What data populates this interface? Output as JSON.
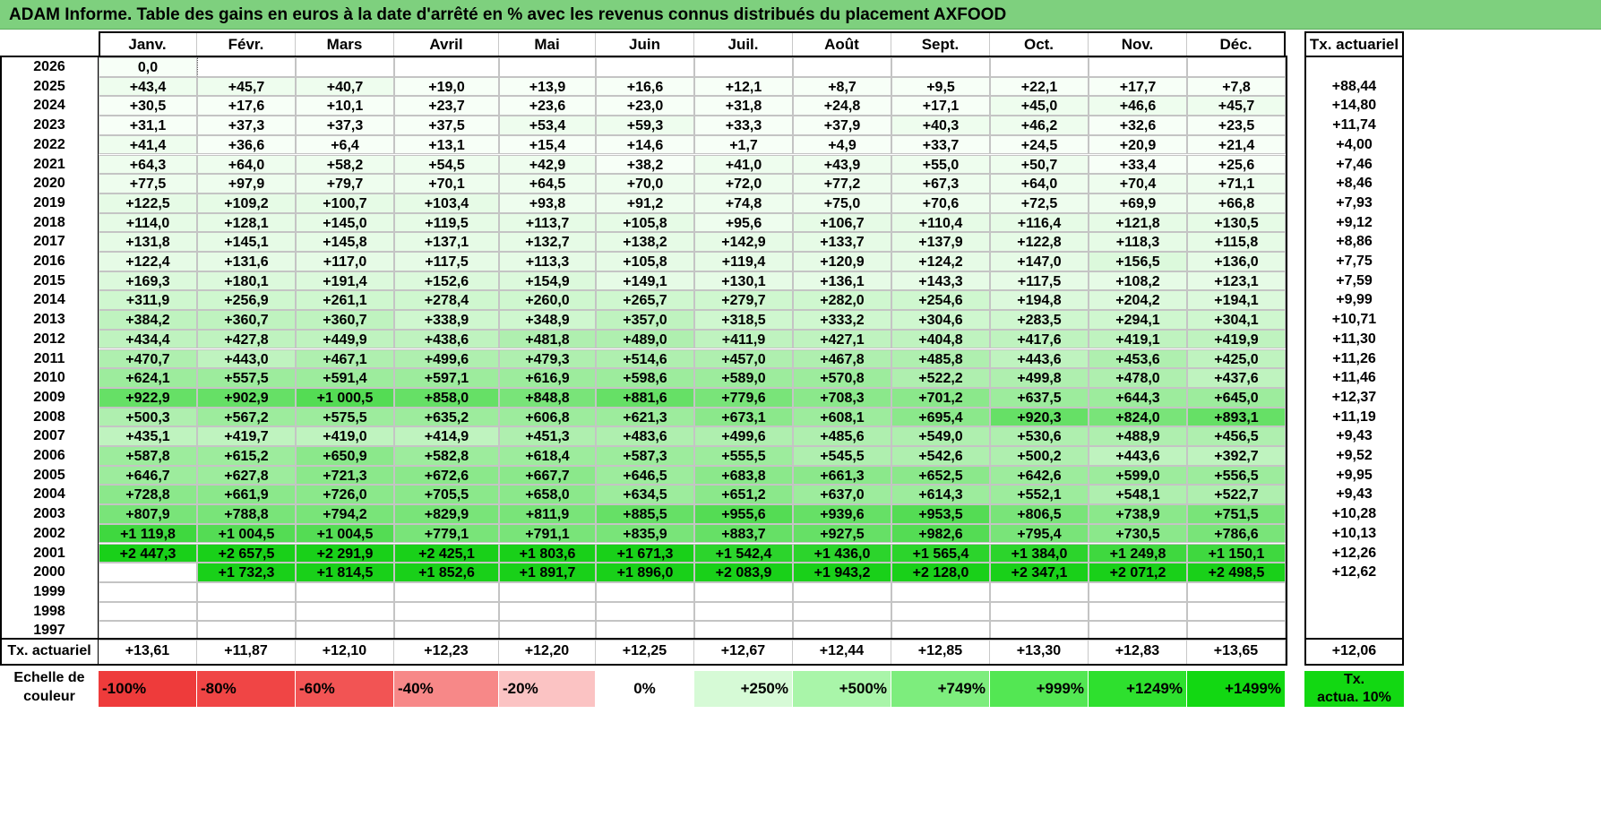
{
  "title": "ADAM Informe. Table des gains en euros à la date d'arrêté en % avec les revenus connus distribués du placement AXFOOD",
  "months": [
    "Janv.",
    "Févr.",
    "Mars",
    "Avril",
    "Mai",
    "Juin",
    "Juil.",
    "Août",
    "Sept.",
    "Oct.",
    "Nov.",
    "Déc."
  ],
  "rate_header": "Tx. actuariel",
  "rows": [
    {
      "year": "2026",
      "values": [
        "0,0",
        "",
        "",
        "",
        "",
        "",
        "",
        "",
        "",
        "",
        "",
        ""
      ],
      "rate": ""
    },
    {
      "year": "2025",
      "values": [
        "+43,4",
        "+45,7",
        "+40,7",
        "+19,0",
        "+13,9",
        "+16,6",
        "+12,1",
        "+8,7",
        "+9,5",
        "+22,1",
        "+17,7",
        "+7,8"
      ],
      "rate": "+88,44"
    },
    {
      "year": "2024",
      "values": [
        "+30,5",
        "+17,6",
        "+10,1",
        "+23,7",
        "+23,6",
        "+23,0",
        "+31,8",
        "+24,8",
        "+17,1",
        "+45,0",
        "+46,6",
        "+45,7"
      ],
      "rate": "+14,80"
    },
    {
      "year": "2023",
      "values": [
        "+31,1",
        "+37,3",
        "+37,3",
        "+37,5",
        "+53,4",
        "+59,3",
        "+33,3",
        "+37,9",
        "+40,3",
        "+46,2",
        "+32,6",
        "+23,5"
      ],
      "rate": "+11,74"
    },
    {
      "year": "2022",
      "values": [
        "+41,4",
        "+36,6",
        "+6,4",
        "+13,1",
        "+15,4",
        "+14,6",
        "+1,7",
        "+4,9",
        "+33,7",
        "+24,5",
        "+20,9",
        "+21,4"
      ],
      "rate": "+4,00"
    },
    {
      "year": "2021",
      "values": [
        "+64,3",
        "+64,0",
        "+58,2",
        "+54,5",
        "+42,9",
        "+38,2",
        "+41,0",
        "+43,9",
        "+55,0",
        "+50,7",
        "+33,4",
        "+25,6"
      ],
      "rate": "+7,46"
    },
    {
      "year": "2020",
      "values": [
        "+77,5",
        "+97,9",
        "+79,7",
        "+70,1",
        "+64,5",
        "+70,0",
        "+72,0",
        "+77,2",
        "+67,3",
        "+64,0",
        "+70,4",
        "+71,1"
      ],
      "rate": "+8,46"
    },
    {
      "year": "2019",
      "values": [
        "+122,5",
        "+109,2",
        "+100,7",
        "+103,4",
        "+93,8",
        "+91,2",
        "+74,8",
        "+75,0",
        "+70,6",
        "+72,5",
        "+69,9",
        "+66,8"
      ],
      "rate": "+7,93"
    },
    {
      "year": "2018",
      "values": [
        "+114,0",
        "+128,1",
        "+145,0",
        "+119,5",
        "+113,7",
        "+105,8",
        "+95,6",
        "+106,7",
        "+110,4",
        "+116,4",
        "+121,8",
        "+130,5"
      ],
      "rate": "+9,12"
    },
    {
      "year": "2017",
      "values": [
        "+131,8",
        "+145,1",
        "+145,8",
        "+137,1",
        "+132,7",
        "+138,2",
        "+142,9",
        "+133,7",
        "+137,9",
        "+122,8",
        "+118,3",
        "+115,8"
      ],
      "rate": "+8,86"
    },
    {
      "year": "2016",
      "values": [
        "+122,4",
        "+131,6",
        "+117,0",
        "+117,5",
        "+113,3",
        "+105,8",
        "+119,4",
        "+120,9",
        "+124,2",
        "+147,0",
        "+156,5",
        "+136,0"
      ],
      "rate": "+7,75"
    },
    {
      "year": "2015",
      "values": [
        "+169,3",
        "+180,1",
        "+191,4",
        "+152,6",
        "+154,9",
        "+149,1",
        "+130,1",
        "+136,1",
        "+143,3",
        "+117,5",
        "+108,2",
        "+123,1"
      ],
      "rate": "+7,59"
    },
    {
      "year": "2014",
      "values": [
        "+311,9",
        "+256,9",
        "+261,1",
        "+278,4",
        "+260,0",
        "+265,7",
        "+279,7",
        "+282,0",
        "+254,6",
        "+194,8",
        "+204,2",
        "+194,1"
      ],
      "rate": "+9,99"
    },
    {
      "year": "2013",
      "values": [
        "+384,2",
        "+360,7",
        "+360,7",
        "+338,9",
        "+348,9",
        "+357,0",
        "+318,5",
        "+333,2",
        "+304,6",
        "+283,5",
        "+294,1",
        "+304,1"
      ],
      "rate": "+10,71"
    },
    {
      "year": "2012",
      "values": [
        "+434,4",
        "+427,8",
        "+449,9",
        "+438,6",
        "+481,8",
        "+489,0",
        "+411,9",
        "+427,1",
        "+404,8",
        "+417,6",
        "+419,1",
        "+419,9"
      ],
      "rate": "+11,30"
    },
    {
      "year": "2011",
      "values": [
        "+470,7",
        "+443,0",
        "+467,1",
        "+499,6",
        "+479,3",
        "+514,6",
        "+457,0",
        "+467,8",
        "+485,8",
        "+443,6",
        "+453,6",
        "+425,0"
      ],
      "rate": "+11,26"
    },
    {
      "year": "2010",
      "values": [
        "+624,1",
        "+557,5",
        "+591,4",
        "+597,1",
        "+616,9",
        "+598,6",
        "+589,0",
        "+570,8",
        "+522,2",
        "+499,8",
        "+478,0",
        "+437,6"
      ],
      "rate": "+11,46"
    },
    {
      "year": "2009",
      "values": [
        "+922,9",
        "+902,9",
        "+1 000,5",
        "+858,0",
        "+848,8",
        "+881,6",
        "+779,6",
        "+708,3",
        "+701,2",
        "+637,5",
        "+644,3",
        "+645,0"
      ],
      "rate": "+12,37"
    },
    {
      "year": "2008",
      "values": [
        "+500,3",
        "+567,2",
        "+575,5",
        "+635,2",
        "+606,8",
        "+621,3",
        "+673,1",
        "+608,1",
        "+695,4",
        "+920,3",
        "+824,0",
        "+893,1"
      ],
      "rate": "+11,19"
    },
    {
      "year": "2007",
      "values": [
        "+435,1",
        "+419,7",
        "+419,0",
        "+414,9",
        "+451,3",
        "+483,6",
        "+499,6",
        "+485,6",
        "+549,0",
        "+530,6",
        "+488,9",
        "+456,5"
      ],
      "rate": "+9,43"
    },
    {
      "year": "2006",
      "values": [
        "+587,8",
        "+615,2",
        "+650,9",
        "+582,8",
        "+618,4",
        "+587,3",
        "+555,5",
        "+545,5",
        "+542,6",
        "+500,2",
        "+443,6",
        "+392,7"
      ],
      "rate": "+9,52"
    },
    {
      "year": "2005",
      "values": [
        "+646,7",
        "+627,8",
        "+721,3",
        "+672,6",
        "+667,7",
        "+646,5",
        "+683,8",
        "+661,3",
        "+652,5",
        "+642,6",
        "+599,0",
        "+556,5"
      ],
      "rate": "+9,95"
    },
    {
      "year": "2004",
      "values": [
        "+728,8",
        "+661,9",
        "+726,0",
        "+705,5",
        "+658,0",
        "+634,5",
        "+651,2",
        "+637,0",
        "+614,3",
        "+552,1",
        "+548,1",
        "+522,7"
      ],
      "rate": "+9,43"
    },
    {
      "year": "2003",
      "values": [
        "+807,9",
        "+788,8",
        "+794,2",
        "+829,9",
        "+811,9",
        "+885,5",
        "+955,6",
        "+939,6",
        "+953,5",
        "+806,5",
        "+738,9",
        "+751,5"
      ],
      "rate": "+10,28"
    },
    {
      "year": "2002",
      "values": [
        "+1 119,8",
        "+1 004,5",
        "+1 004,5",
        "+779,1",
        "+791,1",
        "+835,9",
        "+883,7",
        "+927,5",
        "+982,6",
        "+795,4",
        "+730,5",
        "+786,6"
      ],
      "rate": "+10,13"
    },
    {
      "year": "2001",
      "values": [
        "+2 447,3",
        "+2 657,5",
        "+2 291,9",
        "+2 425,1",
        "+1 803,6",
        "+1 671,3",
        "+1 542,4",
        "+1 436,0",
        "+1 565,4",
        "+1 384,0",
        "+1 249,8",
        "+1 150,1"
      ],
      "rate": "+12,26"
    },
    {
      "year": "2000",
      "values": [
        "",
        "+1 732,3",
        "+1 814,5",
        "+1 852,6",
        "+1 891,7",
        "+1 896,0",
        "+2 083,9",
        "+1 943,2",
        "+2 128,0",
        "+2 347,1",
        "+2 071,2",
        "+2 498,5"
      ],
      "rate": "+12,62"
    },
    {
      "year": "1999",
      "values": [
        "",
        "",
        "",
        "",
        "",
        "",
        "",
        "",
        "",
        "",
        "",
        ""
      ],
      "rate": ""
    },
    {
      "year": "1998",
      "values": [
        "",
        "",
        "",
        "",
        "",
        "",
        "",
        "",
        "",
        "",
        "",
        ""
      ],
      "rate": ""
    },
    {
      "year": "1997",
      "values": [
        "",
        "",
        "",
        "",
        "",
        "",
        "",
        "",
        "",
        "",
        "",
        ""
      ],
      "rate": ""
    }
  ],
  "footer": {
    "label": "Tx. actuariel",
    "values": [
      "+13,61",
      "+11,87",
      "+12,10",
      "+12,23",
      "+12,20",
      "+12,25",
      "+12,67",
      "+12,44",
      "+12,85",
      "+13,30",
      "+12,83",
      "+13,65"
    ],
    "rate": "+12,06"
  },
  "scale": {
    "label_line1": "Echelle de",
    "label_line2": "couleur",
    "items": [
      {
        "text": "-100%",
        "color": "#ee3b3b",
        "align": "left"
      },
      {
        "text": "-80%",
        "color": "#f04545",
        "align": "left"
      },
      {
        "text": "-60%",
        "color": "#f25454",
        "align": "left"
      },
      {
        "text": "-40%",
        "color": "#f78888",
        "align": "left"
      },
      {
        "text": "-20%",
        "color": "#fbc3c3",
        "align": "left"
      },
      {
        "text": "0%",
        "color": "#ffffff",
        "align": "center"
      },
      {
        "text": "+250%",
        "color": "#d6fad6",
        "align": "right"
      },
      {
        "text": "+500%",
        "color": "#a9f5a9",
        "align": "right"
      },
      {
        "text": "+749%",
        "color": "#7ded7d",
        "align": "right"
      },
      {
        "text": "+999%",
        "color": "#53e753",
        "align": "right"
      },
      {
        "text": "+1249%",
        "color": "#2ee02e",
        "align": "right"
      },
      {
        "text": "+1499%",
        "color": "#12d812",
        "align": "right"
      }
    ],
    "rate_line1": "Tx.",
    "rate_line2": "actua. 10%",
    "rate_color": "#12d812"
  }
}
